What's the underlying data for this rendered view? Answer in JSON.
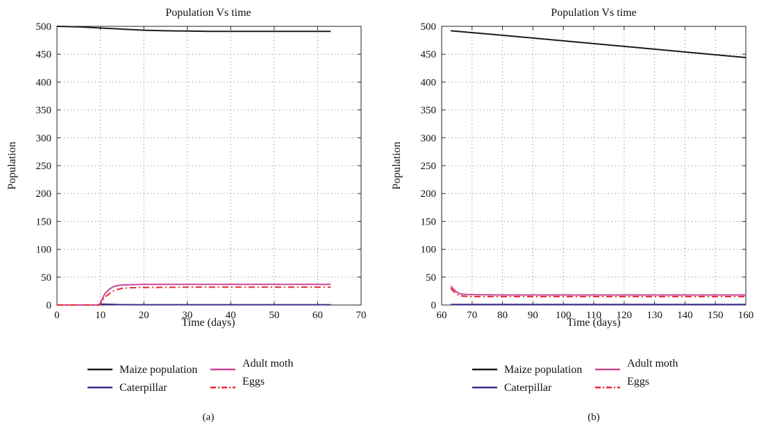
{
  "colors": {
    "maize": "#1a1a1a",
    "caterpillar": "#3a2d8f",
    "adult_moth": "#c9459a",
    "eggs": "#e8262b"
  },
  "chart_data": [
    {
      "type": "line",
      "panel_label": "(a)",
      "title": "Population Vs time",
      "xlabel": "Time (days)",
      "ylabel": "Population",
      "xlim": [
        0,
        70
      ],
      "ylim": [
        0,
        500
      ],
      "xticks": [
        0,
        10,
        20,
        30,
        40,
        50,
        60,
        70
      ],
      "yticks": [
        0,
        50,
        100,
        150,
        200,
        250,
        300,
        350,
        400,
        450,
        500
      ],
      "grid": true,
      "legend_position": "bottom",
      "series": [
        {
          "name": "Maize population",
          "key": "maize",
          "style": "solid",
          "x": [
            0,
            5,
            10,
            15,
            20,
            25,
            30,
            35,
            40,
            50,
            63
          ],
          "y": [
            500,
            499,
            497,
            495,
            493,
            492,
            491.5,
            491,
            491,
            491,
            491
          ]
        },
        {
          "name": "Caterpillar",
          "key": "caterpillar",
          "style": "solid",
          "x": [
            0,
            9.5,
            10.5,
            12,
            14,
            18,
            63
          ],
          "y": [
            0,
            0,
            1.5,
            1.2,
            0.8,
            0.5,
            0.5
          ]
        },
        {
          "name": "Adult moth",
          "key": "adult_moth",
          "style": "solid",
          "x": [
            0,
            9.5,
            10,
            10.5,
            11,
            12,
            13,
            14,
            15,
            17,
            20,
            63
          ],
          "y": [
            0,
            0,
            3,
            12,
            20,
            28,
            33,
            35,
            36,
            36.5,
            37,
            37
          ]
        },
        {
          "name": "Eggs",
          "key": "eggs",
          "style": "dashdot",
          "x": [
            0,
            9.5,
            10,
            10.5,
            11,
            12,
            13,
            14,
            15,
            17,
            20,
            30,
            63
          ],
          "y": [
            0,
            0,
            2,
            8,
            14,
            20,
            25,
            28,
            30,
            31,
            31.5,
            32,
            32
          ]
        }
      ]
    },
    {
      "type": "line",
      "panel_label": "(b)",
      "title": "Population Vs time",
      "xlabel": "Time (days)",
      "ylabel": "Population",
      "xlim": [
        60,
        160
      ],
      "ylim": [
        0,
        500
      ],
      "xticks": [
        60,
        70,
        80,
        90,
        100,
        110,
        120,
        130,
        140,
        150,
        160
      ],
      "yticks": [
        0,
        50,
        100,
        150,
        200,
        250,
        300,
        350,
        400,
        450,
        500
      ],
      "grid": true,
      "legend_position": "bottom",
      "series": [
        {
          "name": "Maize population",
          "key": "maize",
          "style": "solid",
          "x": [
            63,
            80,
            100,
            120,
            140,
            160
          ],
          "y": [
            492,
            484,
            474,
            464,
            454,
            444
          ]
        },
        {
          "name": "Caterpillar",
          "key": "caterpillar",
          "style": "solid",
          "x": [
            63,
            65,
            70,
            100,
            160
          ],
          "y": [
            1,
            1,
            1,
            1,
            1
          ]
        },
        {
          "name": "Adult moth",
          "key": "adult_moth",
          "style": "solid",
          "x": [
            63,
            64,
            65,
            66,
            68,
            70,
            80,
            100,
            160
          ],
          "y": [
            34,
            28,
            23,
            20,
            19,
            18.5,
            18,
            18,
            18
          ]
        },
        {
          "name": "Eggs",
          "key": "eggs",
          "style": "dashdot",
          "x": [
            63,
            64,
            65,
            66,
            68,
            70,
            80,
            100,
            160
          ],
          "y": [
            30,
            24,
            19,
            16.5,
            15.5,
            15,
            15,
            15,
            15
          ]
        }
      ]
    }
  ]
}
